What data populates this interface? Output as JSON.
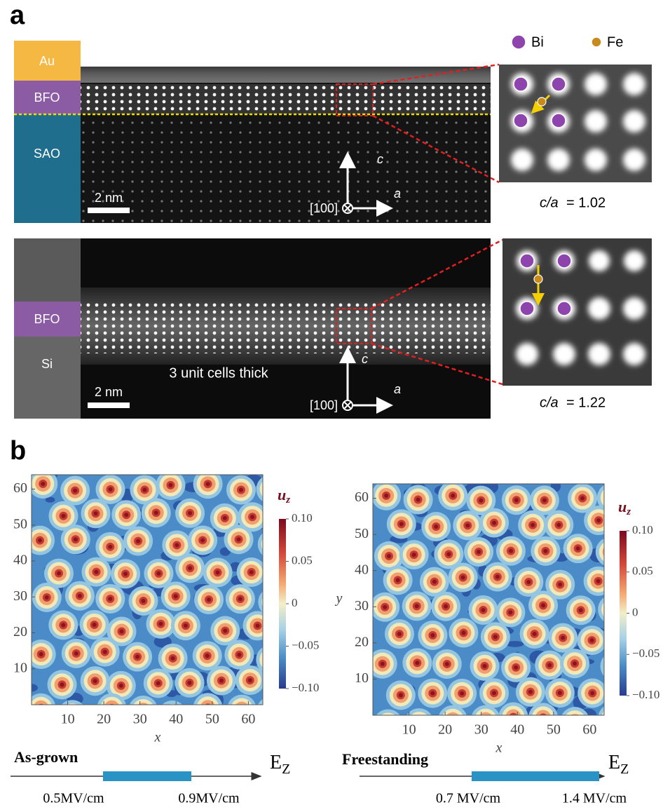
{
  "panel_a": {
    "label": "a",
    "legend": {
      "bi": "Bi",
      "fe": "Fe"
    },
    "top": {
      "layers": [
        "Au",
        "BFO",
        "SAO"
      ],
      "scale": "2 nm",
      "axis_c": "c",
      "axis_a": "a",
      "direction": "[100]",
      "ratio_label": "c/a",
      "ratio_value": "= 1.02"
    },
    "bottom": {
      "layers": [
        "BFO",
        "Si"
      ],
      "note": "3 unit cells thick",
      "scale": "2 nm",
      "axis_c": "c",
      "axis_a": "a",
      "direction": "[100]",
      "ratio_label": "c/a",
      "ratio_value": "= 1.22"
    }
  },
  "panel_b": {
    "label": "b",
    "maps": [
      {
        "xlabel": "x",
        "ylabel": null,
        "xlim": [
          0,
          64
        ],
        "ylim": [
          0,
          64
        ],
        "xticks": [
          10,
          20,
          30,
          40,
          50,
          60
        ],
        "yticks": [
          10,
          20,
          30,
          40,
          50,
          60
        ],
        "colorbar": {
          "label": "u",
          "label_sub": "z",
          "zlim": [
            -0.1,
            0.1
          ],
          "ticks": [
            {
              "value": 0.1,
              "label": "0.10"
            },
            {
              "value": 0.05,
              "label": "0.05"
            },
            0,
            {
              "value": -0.05,
              "label": "−0.05"
            },
            {
              "value": -0.1,
              "label": "−0.10"
            }
          ]
        },
        "field": {
          "state": "As-grown",
          "axis": "E",
          "axis_sub": "Z",
          "low": "0.5MV/cm",
          "high": "0.9MV/cm"
        }
      },
      {
        "xlabel": "x",
        "ylabel": "y",
        "xlim": [
          0,
          64
        ],
        "ylim": [
          0,
          64
        ],
        "xticks": [
          10,
          20,
          30,
          40,
          50,
          60
        ],
        "yticks": [
          10,
          20,
          30,
          40,
          50,
          60
        ],
        "colorbar": {
          "label": "u",
          "label_sub": "z",
          "zlim": [
            -0.1,
            0.1
          ],
          "ticks": [
            {
              "value": 0.1,
              "label": "0.10"
            },
            {
              "value": 0.05,
              "label": "0.05"
            },
            0,
            {
              "value": -0.05,
              "label": "−0.05"
            },
            {
              "value": -0.1,
              "label": "−0.10"
            }
          ]
        },
        "field": {
          "state": "Freestanding",
          "axis": "E",
          "axis_sub": "Z",
          "low": "0.7 MV/cm",
          "high": "1.4 MV/cm"
        }
      }
    ]
  }
}
